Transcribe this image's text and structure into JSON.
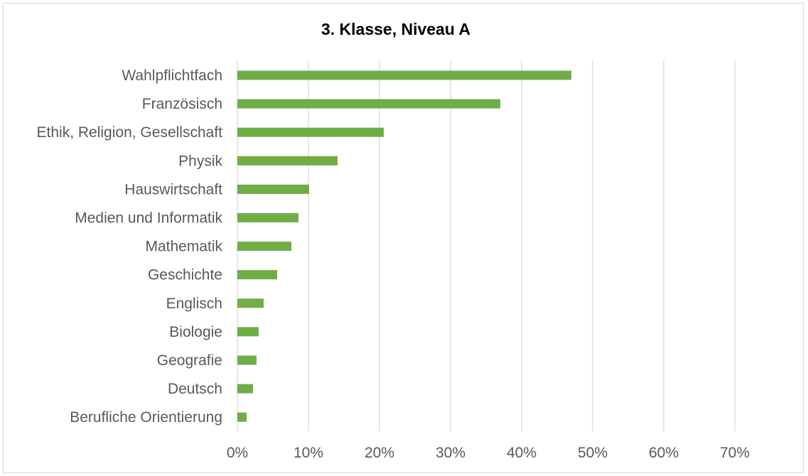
{
  "chart_data": {
    "type": "bar",
    "orientation": "horizontal",
    "title": "3. Klasse, Niveau A",
    "xlabel": "",
    "ylabel": "",
    "categories": [
      "Wahlpflichtfach",
      "Französisch",
      "Ethik, Religion, Gesellschaft",
      "Physik",
      "Hauswirtschaft",
      "Medien und Informatik",
      "Mathematik",
      "Geschichte",
      "Englisch",
      "Biologie",
      "Geografie",
      "Deutsch",
      "Berufliche Orientierung"
    ],
    "values": [
      0.47,
      0.37,
      0.206,
      0.141,
      0.101,
      0.086,
      0.076,
      0.056,
      0.037,
      0.03,
      0.027,
      0.022,
      0.013
    ],
    "xlim": [
      0,
      0.7
    ],
    "x_ticks": [
      "0%",
      "10%",
      "20%",
      "30%",
      "40%",
      "50%",
      "60%",
      "70%"
    ],
    "grid": "vertical",
    "legend": "none",
    "bar_color": "#70ad47",
    "gridline_color": "#d9d9d9"
  }
}
